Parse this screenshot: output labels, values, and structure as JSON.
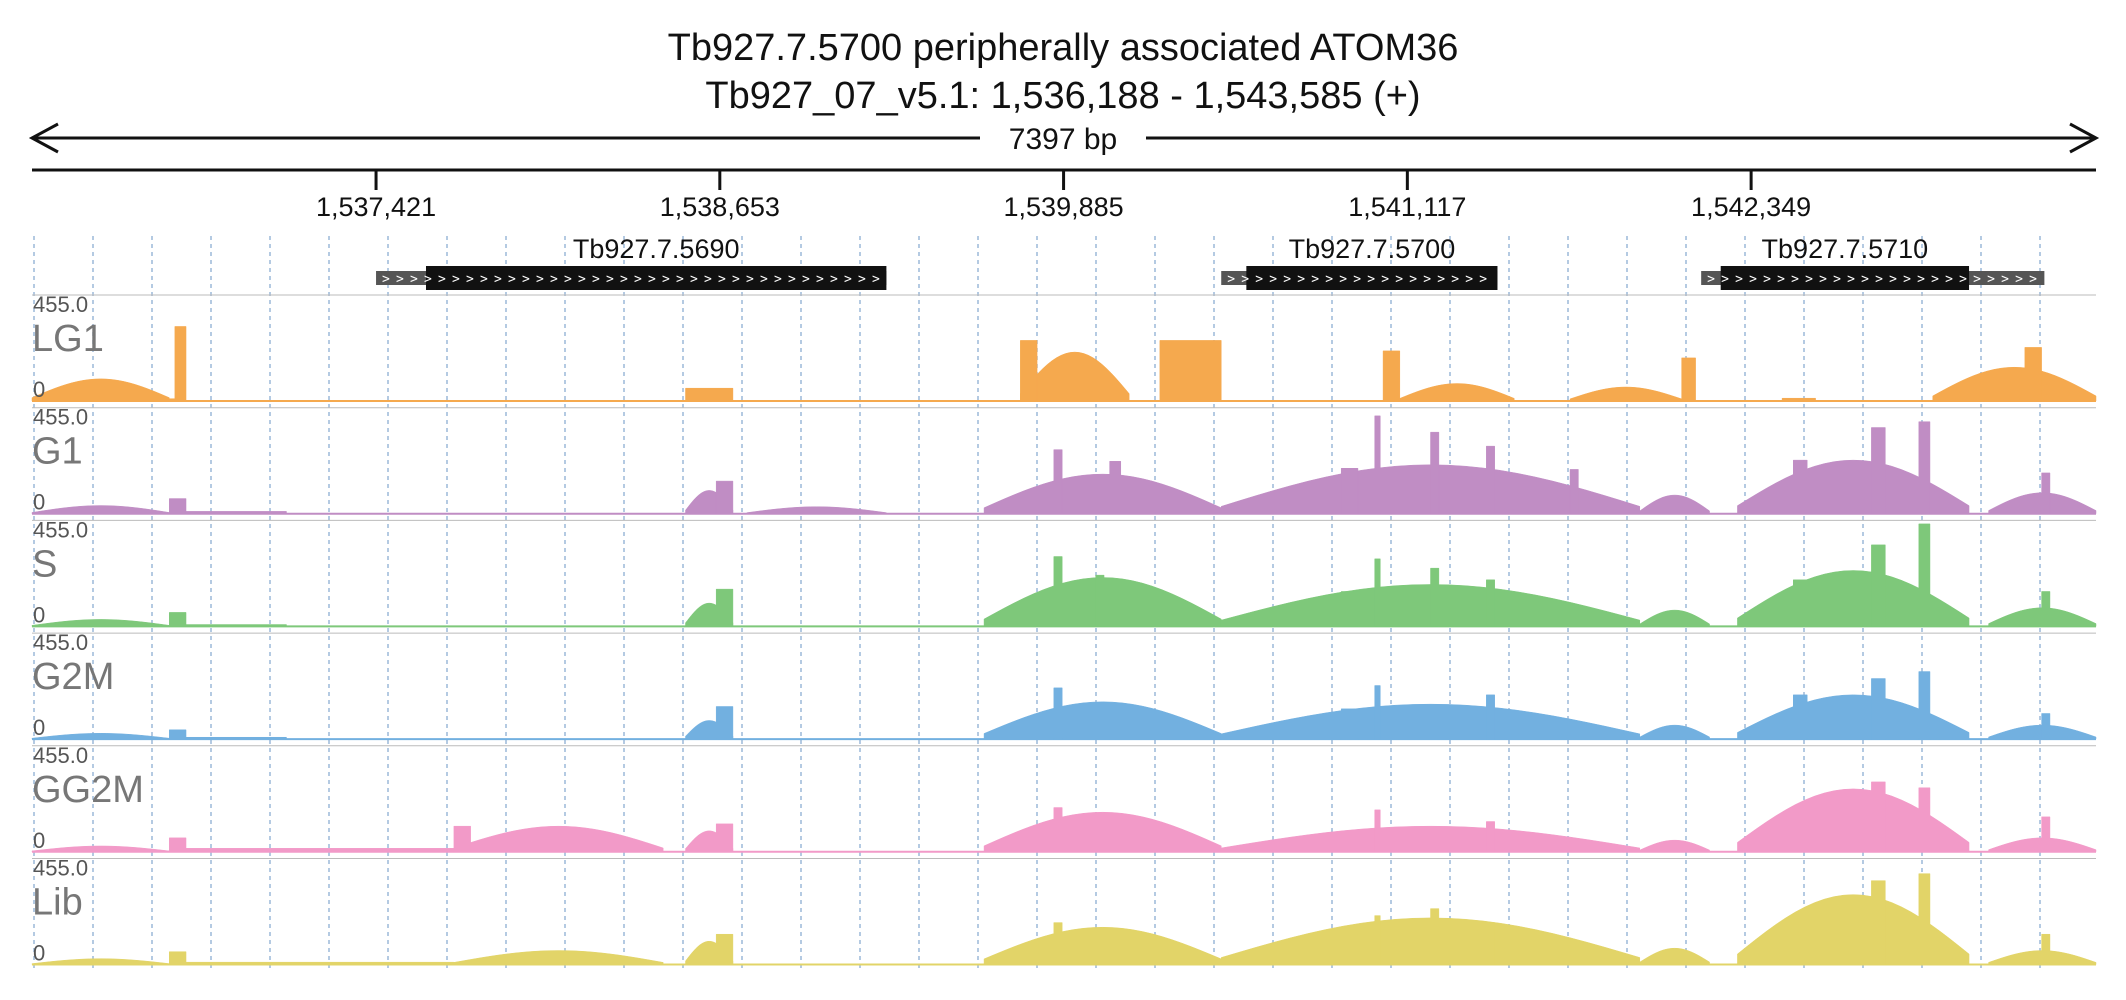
{
  "title": {
    "line1": "Tb927.7.5700  peripherally associated ATOM36",
    "line2": "Tb927_07_v5.1: 1,536,188 - 1,543,585 (+)"
  },
  "chart_data": {
    "type": "area",
    "region": {
      "chrom": "Tb927_07_v5.1",
      "start": 1536188,
      "end": 1543585,
      "strand": "+",
      "span_label": "7397 bp"
    },
    "x_ticks": [
      {
        "pos": 1537421,
        "label": "1,537,421"
      },
      {
        "pos": 1538653,
        "label": "1,538,653"
      },
      {
        "pos": 1539885,
        "label": "1,539,885"
      },
      {
        "pos": 1541117,
        "label": "1,541,117"
      },
      {
        "pos": 1542349,
        "label": "1,542,349"
      }
    ],
    "genes": [
      {
        "name": "Tb927.7.5690",
        "start": 1537421,
        "end": 1539250,
        "cds_start": 1537600,
        "cds_end": 1539250
      },
      {
        "name": "Tb927.7.5700",
        "start": 1540450,
        "end": 1541440,
        "cds_start": 1540540,
        "cds_end": 1541440
      },
      {
        "name": "Tb927.7.5710",
        "start": 1542170,
        "end": 1543400,
        "cds_start": 1542240,
        "cds_end": 1543130
      }
    ],
    "y_range": [
      0,
      455
    ],
    "y_max_label": "455.0",
    "y_min_label": "0",
    "grid": "dashed-vertical",
    "tracks": [
      {
        "name": "LG1",
        "color": "#f5a94e",
        "segments": [
          {
            "start": 1536188,
            "end": 1536680,
            "shape": "hump",
            "h": 95
          },
          {
            "start": 1536680,
            "end": 1536700,
            "shape": "flat",
            "h": 10
          },
          {
            "start": 1536700,
            "end": 1536740,
            "shape": "flat",
            "h": 320
          },
          {
            "start": 1538530,
            "end": 1538700,
            "shape": "flat",
            "h": 55
          },
          {
            "start": 1540230,
            "end": 1540450,
            "shape": "flat",
            "h": 260
          },
          {
            "start": 1539730,
            "end": 1540120,
            "shape": "hump",
            "h": 210
          },
          {
            "start": 1539730,
            "end": 1539790,
            "shape": "flat",
            "h": 260
          },
          {
            "start": 1541030,
            "end": 1541090,
            "shape": "flat",
            "h": 215
          },
          {
            "start": 1541090,
            "end": 1541500,
            "shape": "hump",
            "h": 75
          },
          {
            "start": 1541700,
            "end": 1542100,
            "shape": "hump",
            "h": 60
          },
          {
            "start": 1542100,
            "end": 1542150,
            "shape": "flat",
            "h": 185
          },
          {
            "start": 1542460,
            "end": 1542580,
            "shape": "flat",
            "h": 12
          },
          {
            "start": 1543000,
            "end": 1543585,
            "shape": "hump",
            "h": 145
          },
          {
            "start": 1543330,
            "end": 1543390,
            "shape": "flat",
            "h": 230
          }
        ]
      },
      {
        "name": "G1",
        "color": "#c08dc4",
        "segments": [
          {
            "start": 1536188,
            "end": 1536680,
            "shape": "hump",
            "h": 35
          },
          {
            "start": 1536680,
            "end": 1536740,
            "shape": "flat",
            "h": 65
          },
          {
            "start": 1536740,
            "end": 1537100,
            "shape": "flat",
            "h": 10
          },
          {
            "start": 1538530,
            "end": 1538700,
            "shape": "hump",
            "h": 100
          },
          {
            "start": 1538640,
            "end": 1538700,
            "shape": "flat",
            "h": 140
          },
          {
            "start": 1538750,
            "end": 1539250,
            "shape": "hump",
            "h": 30
          },
          {
            "start": 1539600,
            "end": 1540450,
            "shape": "hump",
            "h": 170
          },
          {
            "start": 1539850,
            "end": 1539880,
            "shape": "flat",
            "h": 275
          },
          {
            "start": 1540050,
            "end": 1540090,
            "shape": "flat",
            "h": 225
          },
          {
            "start": 1540450,
            "end": 1541950,
            "shape": "hump",
            "h": 210
          },
          {
            "start": 1540880,
            "end": 1540940,
            "shape": "flat",
            "h": 195
          },
          {
            "start": 1541000,
            "end": 1541020,
            "shape": "flat",
            "h": 420
          },
          {
            "start": 1541200,
            "end": 1541230,
            "shape": "flat",
            "h": 350
          },
          {
            "start": 1541400,
            "end": 1541430,
            "shape": "flat",
            "h": 290
          },
          {
            "start": 1541700,
            "end": 1541730,
            "shape": "flat",
            "h": 190
          },
          {
            "start": 1541950,
            "end": 1542200,
            "shape": "hump",
            "h": 80
          },
          {
            "start": 1542300,
            "end": 1543130,
            "shape": "hump",
            "h": 230
          },
          {
            "start": 1542500,
            "end": 1542550,
            "shape": "flat",
            "h": 230
          },
          {
            "start": 1542780,
            "end": 1542830,
            "shape": "flat",
            "h": 370
          },
          {
            "start": 1542950,
            "end": 1542990,
            "shape": "flat",
            "h": 395
          },
          {
            "start": 1543200,
            "end": 1543585,
            "shape": "hump",
            "h": 90
          },
          {
            "start": 1543390,
            "end": 1543420,
            "shape": "flat",
            "h": 175
          }
        ]
      },
      {
        "name": "S",
        "color": "#7ec87a",
        "segments": [
          {
            "start": 1536188,
            "end": 1536680,
            "shape": "hump",
            "h": 30
          },
          {
            "start": 1536680,
            "end": 1536740,
            "shape": "flat",
            "h": 60
          },
          {
            "start": 1536740,
            "end": 1537100,
            "shape": "flat",
            "h": 8
          },
          {
            "start": 1538530,
            "end": 1538700,
            "shape": "hump",
            "h": 100
          },
          {
            "start": 1538640,
            "end": 1538700,
            "shape": "flat",
            "h": 160
          },
          {
            "start": 1539600,
            "end": 1540450,
            "shape": "hump",
            "h": 210
          },
          {
            "start": 1539850,
            "end": 1539880,
            "shape": "flat",
            "h": 300
          },
          {
            "start": 1540000,
            "end": 1540030,
            "shape": "flat",
            "h": 220
          },
          {
            "start": 1540450,
            "end": 1541950,
            "shape": "hump",
            "h": 180
          },
          {
            "start": 1540880,
            "end": 1540940,
            "shape": "flat",
            "h": 150
          },
          {
            "start": 1541000,
            "end": 1541020,
            "shape": "flat",
            "h": 290
          },
          {
            "start": 1541200,
            "end": 1541230,
            "shape": "flat",
            "h": 250
          },
          {
            "start": 1541400,
            "end": 1541430,
            "shape": "flat",
            "h": 200
          },
          {
            "start": 1541950,
            "end": 1542200,
            "shape": "hump",
            "h": 70
          },
          {
            "start": 1542300,
            "end": 1543130,
            "shape": "hump",
            "h": 240
          },
          {
            "start": 1542500,
            "end": 1542550,
            "shape": "flat",
            "h": 200
          },
          {
            "start": 1542780,
            "end": 1542830,
            "shape": "flat",
            "h": 350
          },
          {
            "start": 1542950,
            "end": 1542990,
            "shape": "flat",
            "h": 440
          },
          {
            "start": 1543200,
            "end": 1543585,
            "shape": "hump",
            "h": 80
          },
          {
            "start": 1543390,
            "end": 1543420,
            "shape": "flat",
            "h": 150
          }
        ]
      },
      {
        "name": "G2M",
        "color": "#72b0e0",
        "segments": [
          {
            "start": 1536188,
            "end": 1536680,
            "shape": "hump",
            "h": 25
          },
          {
            "start": 1536680,
            "end": 1536740,
            "shape": "flat",
            "h": 40
          },
          {
            "start": 1536740,
            "end": 1537100,
            "shape": "flat",
            "h": 8
          },
          {
            "start": 1538530,
            "end": 1538700,
            "shape": "hump",
            "h": 80
          },
          {
            "start": 1538640,
            "end": 1538700,
            "shape": "flat",
            "h": 140
          },
          {
            "start": 1539600,
            "end": 1540450,
            "shape": "hump",
            "h": 160
          },
          {
            "start": 1539850,
            "end": 1539880,
            "shape": "flat",
            "h": 220
          },
          {
            "start": 1540450,
            "end": 1541950,
            "shape": "hump",
            "h": 150
          },
          {
            "start": 1540880,
            "end": 1540940,
            "shape": "flat",
            "h": 130
          },
          {
            "start": 1541000,
            "end": 1541020,
            "shape": "flat",
            "h": 230
          },
          {
            "start": 1541400,
            "end": 1541430,
            "shape": "flat",
            "h": 190
          },
          {
            "start": 1541950,
            "end": 1542200,
            "shape": "hump",
            "h": 60
          },
          {
            "start": 1542300,
            "end": 1543130,
            "shape": "hump",
            "h": 190
          },
          {
            "start": 1542500,
            "end": 1542550,
            "shape": "flat",
            "h": 190
          },
          {
            "start": 1542780,
            "end": 1542830,
            "shape": "flat",
            "h": 260
          },
          {
            "start": 1542950,
            "end": 1542990,
            "shape": "flat",
            "h": 290
          },
          {
            "start": 1543200,
            "end": 1543585,
            "shape": "hump",
            "h": 60
          },
          {
            "start": 1543390,
            "end": 1543420,
            "shape": "flat",
            "h": 110
          }
        ]
      },
      {
        "name": "GG2M",
        "color": "#f29ac8",
        "segments": [
          {
            "start": 1536188,
            "end": 1536680,
            "shape": "hump",
            "h": 25
          },
          {
            "start": 1536680,
            "end": 1536740,
            "shape": "flat",
            "h": 60
          },
          {
            "start": 1536740,
            "end": 1537700,
            "shape": "flat",
            "h": 15
          },
          {
            "start": 1537700,
            "end": 1538450,
            "shape": "hump",
            "h": 110
          },
          {
            "start": 1537700,
            "end": 1537760,
            "shape": "flat",
            "h": 110
          },
          {
            "start": 1538530,
            "end": 1538700,
            "shape": "hump",
            "h": 90
          },
          {
            "start": 1538640,
            "end": 1538700,
            "shape": "flat",
            "h": 120
          },
          {
            "start": 1539600,
            "end": 1540450,
            "shape": "hump",
            "h": 170
          },
          {
            "start": 1539850,
            "end": 1539880,
            "shape": "flat",
            "h": 190
          },
          {
            "start": 1540450,
            "end": 1541950,
            "shape": "hump",
            "h": 110
          },
          {
            "start": 1541000,
            "end": 1541020,
            "shape": "flat",
            "h": 180
          },
          {
            "start": 1541400,
            "end": 1541430,
            "shape": "flat",
            "h": 130
          },
          {
            "start": 1541950,
            "end": 1542200,
            "shape": "hump",
            "h": 50
          },
          {
            "start": 1542300,
            "end": 1543130,
            "shape": "hump",
            "h": 270
          },
          {
            "start": 1542780,
            "end": 1542830,
            "shape": "flat",
            "h": 300
          },
          {
            "start": 1542950,
            "end": 1542990,
            "shape": "flat",
            "h": 275
          },
          {
            "start": 1543200,
            "end": 1543585,
            "shape": "hump",
            "h": 60
          },
          {
            "start": 1543390,
            "end": 1543420,
            "shape": "flat",
            "h": 150
          }
        ]
      },
      {
        "name": "Lib",
        "color": "#e2d468",
        "segments": [
          {
            "start": 1536188,
            "end": 1536680,
            "shape": "hump",
            "h": 25
          },
          {
            "start": 1536680,
            "end": 1536740,
            "shape": "flat",
            "h": 55
          },
          {
            "start": 1536740,
            "end": 1537700,
            "shape": "flat",
            "h": 10
          },
          {
            "start": 1537700,
            "end": 1538450,
            "shape": "hump",
            "h": 60
          },
          {
            "start": 1538530,
            "end": 1538700,
            "shape": "hump",
            "h": 100
          },
          {
            "start": 1538640,
            "end": 1538700,
            "shape": "flat",
            "h": 130
          },
          {
            "start": 1539600,
            "end": 1540450,
            "shape": "hump",
            "h": 160
          },
          {
            "start": 1539850,
            "end": 1539880,
            "shape": "flat",
            "h": 180
          },
          {
            "start": 1540450,
            "end": 1541950,
            "shape": "hump",
            "h": 200
          },
          {
            "start": 1540880,
            "end": 1540940,
            "shape": "flat",
            "h": 130
          },
          {
            "start": 1541000,
            "end": 1541020,
            "shape": "flat",
            "h": 210
          },
          {
            "start": 1541200,
            "end": 1541230,
            "shape": "flat",
            "h": 240
          },
          {
            "start": 1541400,
            "end": 1541430,
            "shape": "flat",
            "h": 180
          },
          {
            "start": 1541950,
            "end": 1542200,
            "shape": "hump",
            "h": 70
          },
          {
            "start": 1542300,
            "end": 1543130,
            "shape": "hump",
            "h": 300
          },
          {
            "start": 1542780,
            "end": 1542830,
            "shape": "flat",
            "h": 360
          },
          {
            "start": 1542950,
            "end": 1542990,
            "shape": "flat",
            "h": 390
          },
          {
            "start": 1543200,
            "end": 1543585,
            "shape": "hump",
            "h": 60
          },
          {
            "start": 1543390,
            "end": 1543420,
            "shape": "flat",
            "h": 130
          }
        ]
      }
    ]
  }
}
